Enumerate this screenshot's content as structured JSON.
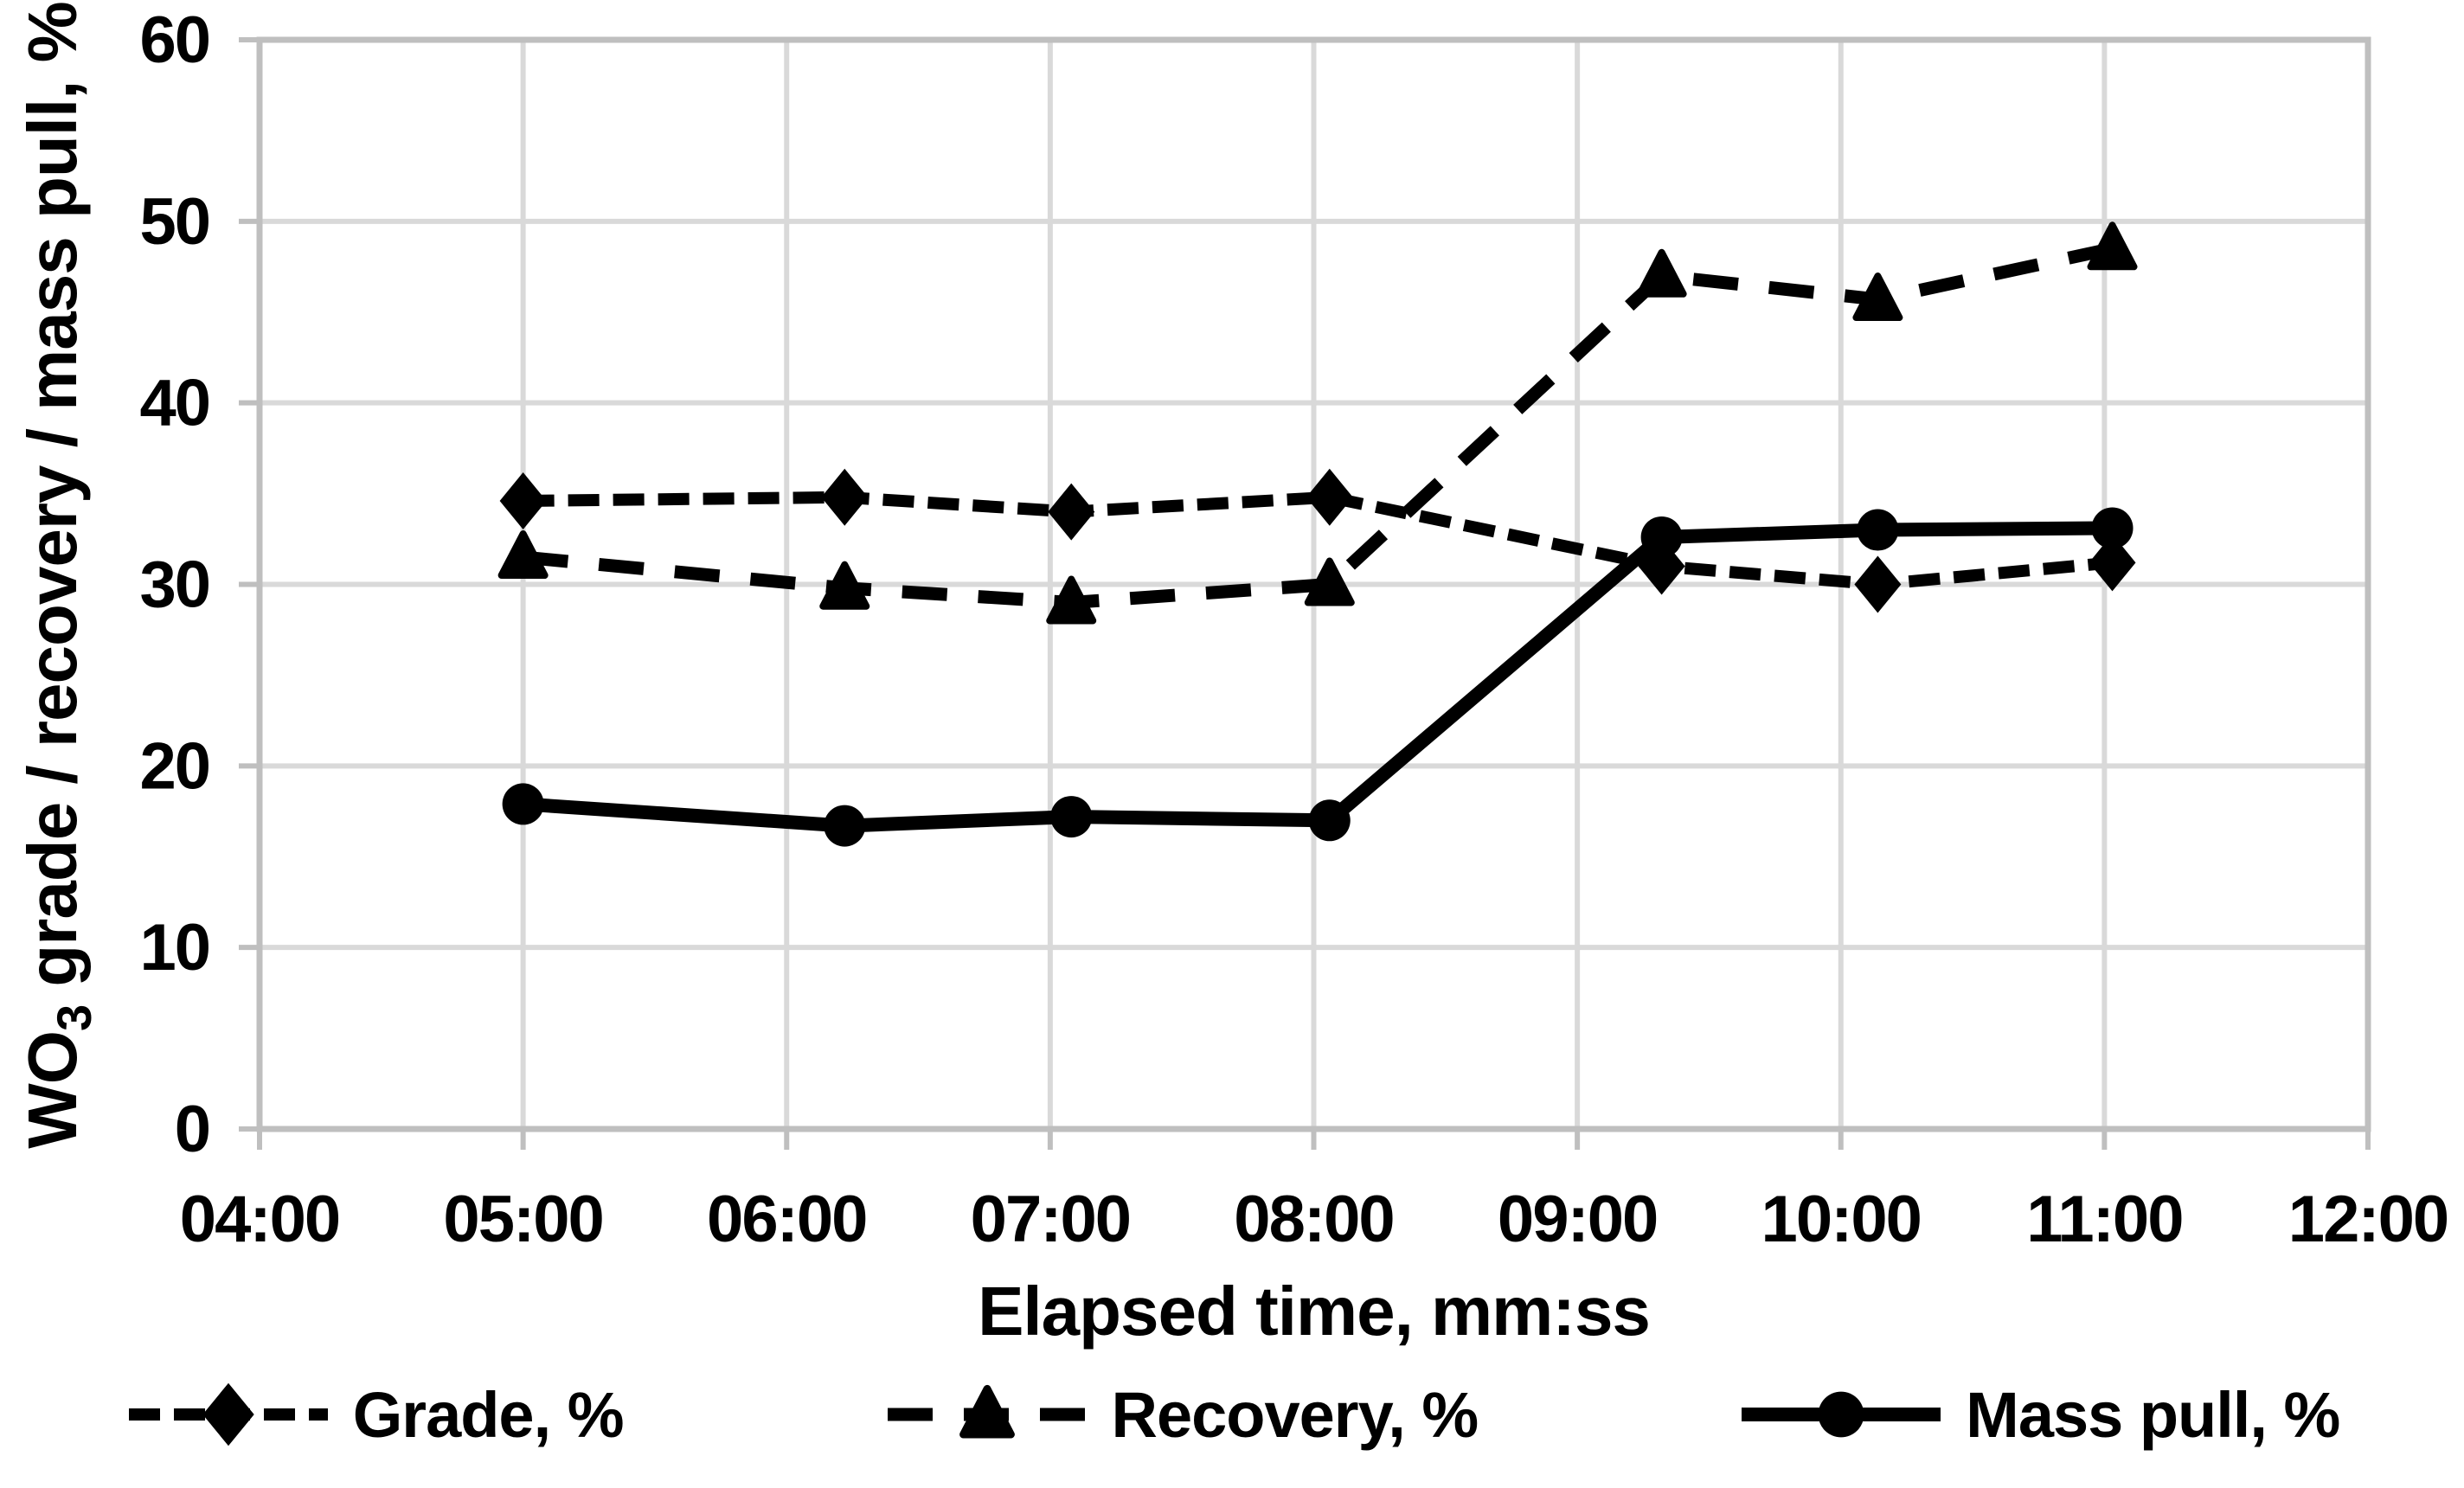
{
  "page": {
    "background": "#ffffff"
  },
  "axes": {
    "y_title_prefix": "WO",
    "y_title_sub": "3",
    "y_title_suffix": " grade / recovery / mass pull, %"
  },
  "chart_data": {
    "type": "line",
    "title": "",
    "xlabel": "Elapsed time, mm:ss",
    "ylabel": "WO3 grade / recovery / mass pull, %",
    "x_tick_labels": [
      "04:00",
      "05:00",
      "06:00",
      "07:00",
      "08:00",
      "09:00",
      "10:00",
      "11:00",
      "12:00"
    ],
    "x_tick_minutes": [
      4,
      5,
      6,
      7,
      8,
      9,
      10,
      11,
      12
    ],
    "y_ticks": [
      0,
      10,
      20,
      30,
      40,
      50,
      60
    ],
    "ylim": [
      0,
      60
    ],
    "xlim_minutes": [
      4,
      12
    ],
    "grid": true,
    "legend_position": "bottom",
    "points_elapsed_time": [
      "05:00",
      "06:13",
      "07:05",
      "08:04",
      "09:19",
      "10:08",
      "11:02"
    ],
    "points_minutes": [
      5.0,
      6.22,
      7.08,
      8.06,
      9.32,
      10.14,
      11.03
    ],
    "series": [
      {
        "name": "Grade, %",
        "line_style": "dashed",
        "marker": "diamond",
        "color": "#000000",
        "values": [
          34.6,
          34.8,
          34.0,
          34.8,
          31.0,
          30.0,
          31.2
        ]
      },
      {
        "name": "Recovery, %",
        "line_style": "long-dash",
        "marker": "triangle",
        "color": "#000000",
        "values": [
          31.5,
          29.8,
          29.0,
          30.0,
          47.0,
          45.7,
          48.5
        ]
      },
      {
        "name": "Mass pull, %",
        "line_style": "solid",
        "marker": "circle",
        "color": "#000000",
        "values": [
          17.9,
          16.7,
          17.2,
          17.0,
          32.6,
          33.0,
          33.1
        ]
      }
    ],
    "colors": {
      "grid": "#d9d9d9",
      "border": "#bfbfbf",
      "series": "#000000",
      "text": "#000000"
    }
  }
}
